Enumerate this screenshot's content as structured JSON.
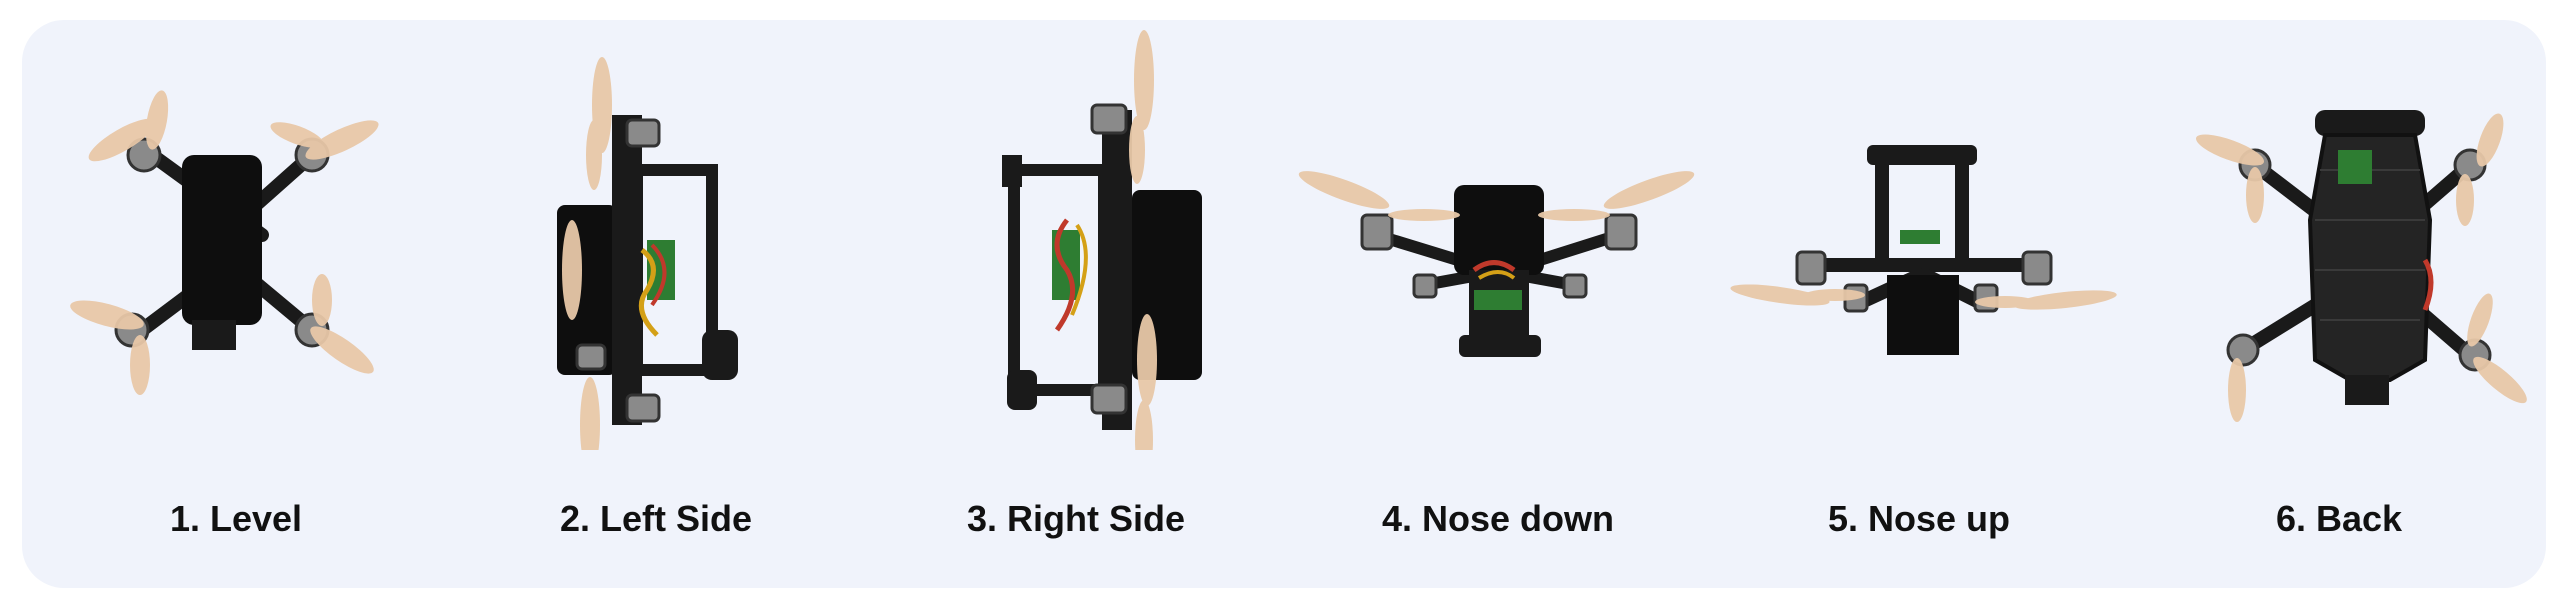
{
  "colors": {
    "panel": "#f0f3fb",
    "frame": "#1a1a1a",
    "body": "#0e0e0e",
    "propeller": "#e8c8a8",
    "motor": "#8a8a8a",
    "wire_red": "#c0392b",
    "wire_yellow": "#d4a017",
    "board_green": "#2e7d32"
  },
  "orientations": [
    {
      "id": "level",
      "caption": "1. Level",
      "icon": "drone-top-view"
    },
    {
      "id": "left-side",
      "caption": "2. Left Side",
      "icon": "drone-left-side-view"
    },
    {
      "id": "right-side",
      "caption": "3. Right Side",
      "icon": "drone-right-side-view"
    },
    {
      "id": "nose-down",
      "caption": "4. Nose down",
      "icon": "drone-nose-down-view"
    },
    {
      "id": "nose-up",
      "caption": "5. Nose up",
      "icon": "drone-nose-up-view"
    },
    {
      "id": "back",
      "caption": "6. Back",
      "icon": "drone-bottom-view"
    }
  ]
}
